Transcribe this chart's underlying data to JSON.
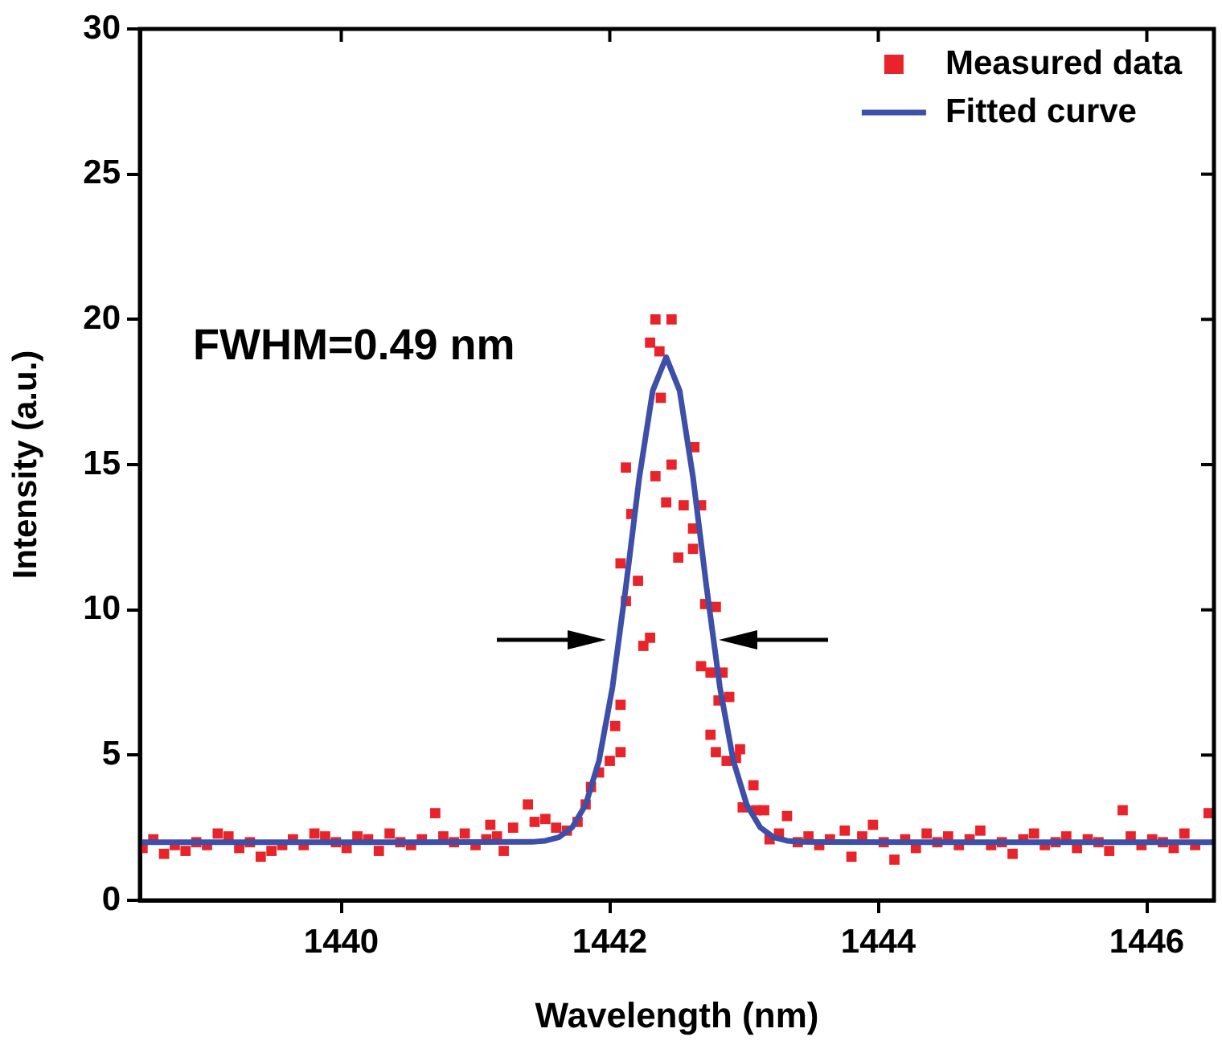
{
  "chart_data": {
    "type": "scatter",
    "xlabel": "Wavelength (nm)",
    "ylabel": "Intensity (a.u.)",
    "xlim": [
      1438.5,
      1446.5
    ],
    "ylim": [
      0,
      30
    ],
    "xticks": [
      1440,
      1442,
      1444,
      1446
    ],
    "yticks": [
      0,
      5,
      10,
      15,
      20,
      25,
      30
    ],
    "grid": false,
    "legend": "top right",
    "annotations": [
      "FWHM=0.49 nm"
    ],
    "series": [
      {
        "name": "Measured data",
        "type": "scatter",
        "marker": "square",
        "color": "#e8232a",
        "x": [
          1438.52,
          1438.6,
          1438.68,
          1438.76,
          1438.84,
          1438.92,
          1439.0,
          1439.08,
          1439.16,
          1439.24,
          1439.32,
          1439.4,
          1439.48,
          1439.56,
          1439.64,
          1439.72,
          1439.8,
          1439.88,
          1439.96,
          1440.04,
          1440.12,
          1440.2,
          1440.28,
          1440.36,
          1440.44,
          1440.52,
          1440.6,
          1440.7,
          1440.76,
          1440.84,
          1440.92,
          1441.0,
          1441.08,
          1441.11,
          1441.16,
          1441.21,
          1441.28,
          1441.39,
          1441.44,
          1441.52,
          1441.6,
          1441.68,
          1441.76,
          1441.82,
          1441.86,
          1441.92,
          1442.0,
          1442.04,
          1442.08,
          1442.08,
          1442.08,
          1442.12,
          1442.12,
          1442.16,
          1442.21,
          1442.25,
          1442.3,
          1442.3,
          1442.34,
          1442.34,
          1442.37,
          1442.38,
          1442.42,
          1442.46,
          1442.46,
          1442.51,
          1442.55,
          1442.62,
          1442.62,
          1442.63,
          1442.68,
          1442.68,
          1442.71,
          1442.75,
          1442.75,
          1442.79,
          1442.79,
          1442.81,
          1442.84,
          1442.87,
          1442.89,
          1442.94,
          1442.97,
          1442.99,
          1443.07,
          1443.09,
          1443.15,
          1443.19,
          1443.26,
          1443.32,
          1443.4,
          1443.48,
          1443.56,
          1443.64,
          1443.75,
          1443.8,
          1443.88,
          1443.96,
          1444.04,
          1444.12,
          1444.2,
          1444.28,
          1444.36,
          1444.44,
          1444.52,
          1444.6,
          1444.68,
          1444.76,
          1444.84,
          1444.92,
          1445.0,
          1445.08,
          1445.16,
          1445.24,
          1445.32,
          1445.4,
          1445.48,
          1445.56,
          1445.64,
          1445.72,
          1445.82,
          1445.88,
          1445.96,
          1446.04,
          1446.12,
          1446.2,
          1446.28,
          1446.36,
          1446.46
        ],
        "values": [
          1.8,
          2.1,
          1.6,
          1.9,
          1.7,
          2.0,
          1.9,
          2.3,
          2.2,
          1.8,
          2.0,
          1.5,
          1.7,
          1.9,
          2.1,
          1.9,
          2.3,
          2.2,
          2.0,
          1.8,
          2.2,
          2.1,
          1.7,
          2.3,
          2.0,
          1.9,
          2.1,
          3.0,
          2.2,
          2.0,
          2.3,
          1.9,
          2.1,
          2.6,
          2.2,
          1.7,
          2.5,
          3.3,
          2.7,
          2.8,
          2.5,
          2.4,
          2.7,
          3.3,
          3.9,
          4.4,
          4.8,
          6.0,
          6.73,
          5.1,
          11.6,
          10.3,
          14.9,
          13.3,
          11.0,
          8.76,
          9.04,
          19.2,
          20.0,
          14.6,
          18.9,
          17.3,
          13.7,
          20.0,
          15.0,
          11.8,
          13.6,
          12.8,
          12.1,
          15.6,
          13.6,
          8.06,
          10.2,
          7.84,
          5.7,
          10.1,
          5.1,
          6.88,
          7.84,
          4.8,
          7.0,
          4.9,
          5.2,
          3.2,
          3.96,
          3.1,
          3.1,
          2.1,
          2.3,
          2.9,
          2.0,
          2.2,
          1.9,
          2.1,
          2.4,
          1.5,
          2.2,
          2.6,
          2.0,
          1.4,
          2.1,
          1.8,
          2.3,
          2.0,
          2.2,
          1.9,
          2.1,
          2.4,
          1.9,
          2.0,
          1.6,
          2.1,
          2.3,
          1.9,
          2.0,
          2.2,
          1.8,
          2.1,
          2.0,
          1.7,
          3.1,
          2.2,
          1.9,
          2.1,
          2.0,
          1.8,
          2.3,
          1.9,
          3.0
        ]
      },
      {
        "name": "Fitted curve",
        "type": "line",
        "marker": "none",
        "line_style": "solid",
        "color": "#3d4fa8",
        "x": [
          1438.5,
          1439.5,
          1440.5,
          1441.42,
          1441.52,
          1441.62,
          1441.72,
          1441.82,
          1441.92,
          1442.02,
          1442.12,
          1442.22,
          1442.32,
          1442.42,
          1442.52,
          1442.62,
          1442.72,
          1442.82,
          1442.92,
          1443.02,
          1443.12,
          1443.22,
          1443.32,
          1443.42,
          1444.5,
          1445.5,
          1446.5
        ],
        "values": [
          2.0,
          2.0,
          2.0,
          2.01,
          2.05,
          2.17,
          2.51,
          3.29,
          4.81,
          7.34,
          10.8,
          14.56,
          17.55,
          18.7,
          17.55,
          14.56,
          10.8,
          7.34,
          4.81,
          3.29,
          2.51,
          2.17,
          2.05,
          2.01,
          2.0,
          2.0,
          2.0
        ]
      }
    ]
  }
}
